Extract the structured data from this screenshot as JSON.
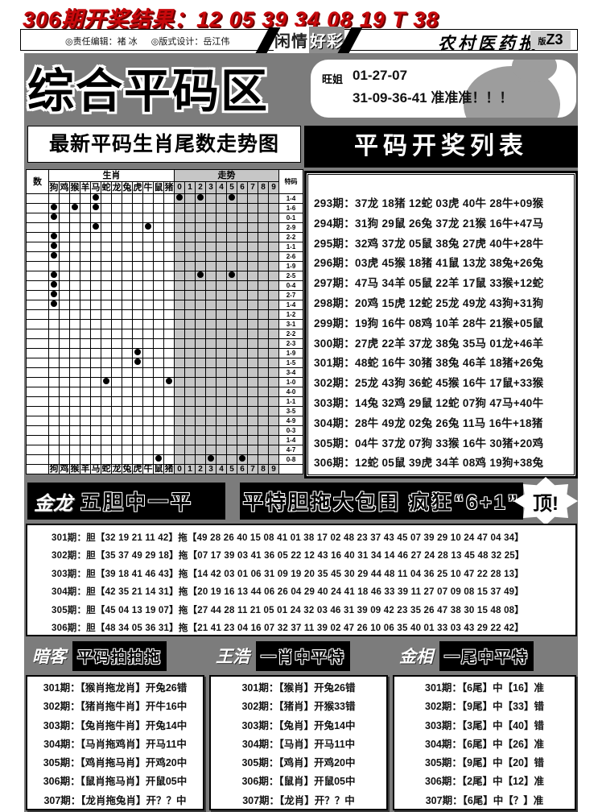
{
  "header": {
    "result_line": "306期开奖结果：12 05 39 34 08 19 T 38",
    "editor": "◎责任编辑：褚 冰",
    "designer": "◎版式设计：岳江伟",
    "logo_left": "闲情",
    "logo_right": "好彩",
    "paper_name": "农村医药报",
    "page_label": "版",
    "page_no": "Z3"
  },
  "main": {
    "zone_title": "综合平码区",
    "tip": {
      "author": "旺姐",
      "line1": "01-27-07",
      "line2": "31-09-36-41 准准准！！！"
    },
    "chart_title": "最新平码生肖尾数走势图",
    "list_title": "平码开奖列表"
  },
  "trend_chart": {
    "type": "dot-grid",
    "corner_label": "数",
    "group1_label": "生肖",
    "group2_label": "走势",
    "right_label": "特码",
    "zodiac_cols": [
      "狗",
      "鸡",
      "猴",
      "羊",
      "马",
      "蛇",
      "龙",
      "兔",
      "虎",
      "牛",
      "鼠",
      "猪"
    ],
    "digit_cols": [
      "0",
      "1",
      "2",
      "3",
      "4",
      "5",
      "6",
      "7",
      "8",
      "9"
    ],
    "rows": [
      {
        "tema": "1-4",
        "zd": [
          4
        ],
        "dd": [
          0,
          2,
          5
        ]
      },
      {
        "tema": "1-6",
        "zd": [
          0,
          2,
          4
        ],
        "dd": []
      },
      {
        "tema": "0-1",
        "zd": [
          0
        ],
        "dd": []
      },
      {
        "tema": "2-9",
        "zd": [
          4,
          9
        ],
        "dd": []
      },
      {
        "tema": "2-2",
        "zd": [
          0
        ],
        "dd": []
      },
      {
        "tema": "1-1",
        "zd": [
          0
        ],
        "dd": []
      },
      {
        "tema": "2-6",
        "zd": [
          0
        ],
        "dd": []
      },
      {
        "tema": "1-9",
        "zd": [],
        "dd": []
      },
      {
        "tema": "2-5",
        "zd": [
          0
        ],
        "dd": [
          2,
          5
        ]
      },
      {
        "tema": "0-4",
        "zd": [
          0
        ],
        "dd": []
      },
      {
        "tema": "2-7",
        "zd": [
          0
        ],
        "dd": []
      },
      {
        "tema": "1-4",
        "zd": [
          0
        ],
        "dd": []
      },
      {
        "tema": "1-2",
        "zd": [],
        "dd": []
      },
      {
        "tema": "3-1",
        "zd": [],
        "dd": []
      },
      {
        "tema": "2-2",
        "zd": [],
        "dd": []
      },
      {
        "tema": "2-3",
        "zd": [],
        "dd": []
      },
      {
        "tema": "1-9",
        "zd": [
          8
        ],
        "dd": []
      },
      {
        "tema": "1-5",
        "zd": [
          8
        ],
        "dd": []
      },
      {
        "tema": "3-4",
        "zd": [],
        "dd": []
      },
      {
        "tema": "1-0",
        "zd": [
          5,
          11
        ],
        "dd": []
      },
      {
        "tema": "4-0",
        "zd": [],
        "dd": []
      },
      {
        "tema": "1-1",
        "zd": [],
        "dd": []
      },
      {
        "tema": "3-5",
        "zd": [],
        "dd": []
      },
      {
        "tema": "4-9",
        "zd": [],
        "dd": []
      },
      {
        "tema": "0-3",
        "zd": [],
        "dd": []
      },
      {
        "tema": "1-4",
        "zd": [],
        "dd": []
      },
      {
        "tema": "4-7",
        "zd": [],
        "dd": []
      },
      {
        "tema": "0-8",
        "zd": [
          10
        ],
        "dd": [
          3,
          6
        ]
      }
    ]
  },
  "results_list": {
    "rows": [
      "293期：37龙 18猪 12蛇 03虎 40牛 28牛+09猴",
      "294期：31狗 29鼠 26兔 37龙 21猴 16牛+47马",
      "295期：32鸡 37龙 05鼠 38兔 27虎 40牛+28牛",
      "296期：03虎 45猴 18猪 41鼠 13龙 38兔+26兔",
      "297期：47马 34羊 05鼠 22羊 17鼠 33猴+12蛇",
      "298期：20鸡 15虎 12蛇 25龙 49龙 43狗+31狗",
      "299期：19狗 16牛 08鸡 10羊 28牛 21猴+05鼠",
      "300期：27虎 22羊 37龙 38兔 35马 01龙+46羊",
      "301期：48蛇 16牛 30猪 38兔 46羊 18猪+26兔",
      "302期：25龙 43狗 36蛇 45猴 16牛 17鼠+33猴",
      "303期：14兔 32鸡 29鼠 12蛇 07狗 47马+40牛",
      "304期：28牛 49龙 02兔 26兔 11马 16牛+18猪",
      "305期：04牛 37龙 07狗 33猴 16牛 30猪+20鸡",
      "306期：12蛇 05鼠 39虎 34羊 08鸡 19狗+38兔"
    ]
  },
  "dantuo": {
    "author": "金龙",
    "banner1": "五胆中一平",
    "banner2": "平特胆拖大包围 疯狂“6+1”",
    "badge": "顶!",
    "rows": [
      "301期：胆【32 19 21 11 42】拖【49 28 26 40 15 08 41 01 38 17 02 48 23 37 43 45 07 39 29 10 24 47 04 34】",
      "302期：胆【35 37 49 29 18】拖【07 17 39 03 41 36 05 22 12 43 16 40 31 34 14 46 27 24 28 13 45 48 32 25】",
      "303期：胆【39 18 41 46 43】拖【14 42 03 01 06 31 09 19 20 35 45 30 29 44 48 11 04 36 25 10 47 22 28 13】",
      "304期：胆【42 35 21 14 31】拖【20 19 16 13 44 06 26 04 29 40 24 41 18 46 33 39 11 27 07 09 08 15 37 49】",
      "305期：胆【45 04 13 19 07】拖【27 44 28 11 21 05 01 24 32 03 46 31 39 09 42 23 35 26 47 38 30 15 48 08】",
      "306期：胆【48 34 05 36 31】拖【21 41 23 04 16 07 32 37 11 39 02 47 26 10 06 35 40 01 33 03 43 29 22 42】"
    ]
  },
  "panels": [
    {
      "author": "暗客",
      "title": "平码拍拍拖",
      "rows": [
        "301期：【猴肖拖龙肖】开兔26错",
        "302期：【猪肖拖牛肖】开牛16中",
        "303期：【兔肖拖牛肖】开兔14中",
        "304期：【马肖拖鸡肖】开马11中",
        "305期：【鸡肖拖马肖】开鸡20中",
        "306期：【鼠肖拖马肖】开鼠05中",
        "307期：【龙肖拖兔肖】开？？中"
      ]
    },
    {
      "author": "王浩",
      "title": "一肖中平特",
      "rows": [
        "301期：【猴肖】开兔26错",
        "302期：【猪肖】开猴33错",
        "303期：【兔肖】开兔14中",
        "304期：【马肖】开马11中",
        "305期：【鸡肖】开鸡20中",
        "306期：【鼠肖】开鼠05中",
        "307期：【龙肖】开？？中"
      ]
    },
    {
      "author": "金相",
      "title": "一尾中平特",
      "rows": [
        "301期：【6尾】中【16】准",
        "302期：【9尾】中【33】错",
        "303期：【3尾】中【40】错",
        "304期：【6尾】中【26】准",
        "305期：【9尾】中【20】错",
        "306期：【2尾】中【12】准",
        "307期：【6尾】中【？】准"
      ]
    }
  ]
}
